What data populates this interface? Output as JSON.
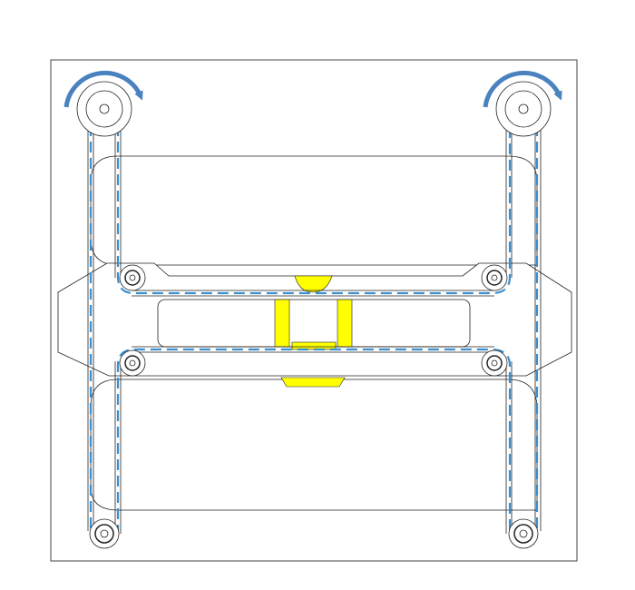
{
  "diagram": {
    "type": "belt-drive-mechanism",
    "components": {
      "drive_pulleys": 2,
      "idler_pulleys": 6,
      "rotation_direction": "clockwise"
    },
    "colors": {
      "belt": "#3b8fcf",
      "rotation_arrow": "#4a82bf",
      "carriage_highlight": "#ffff00",
      "outline": "#222222",
      "background": "#ffffff"
    }
  }
}
